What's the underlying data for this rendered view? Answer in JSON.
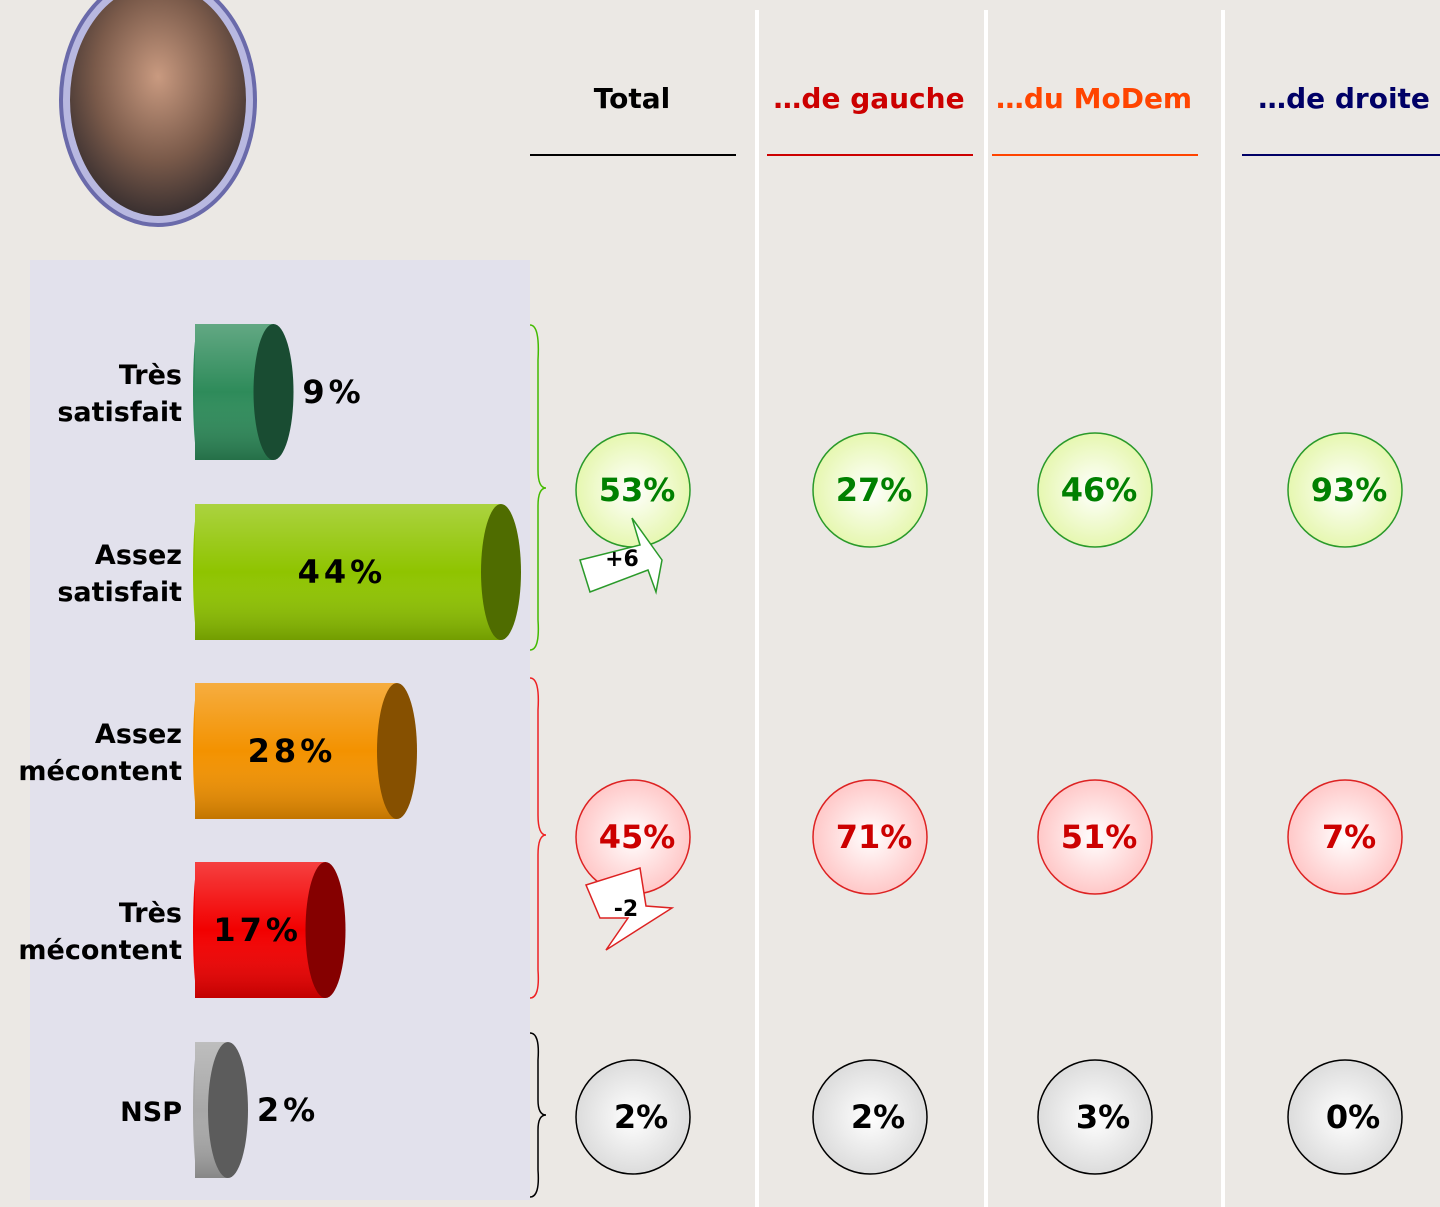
{
  "chart_data": {
    "type": "bar",
    "categories": [
      "Très satisfait",
      "Assez satisfait",
      "Assez mécontent",
      "Très mécontent",
      "NSP"
    ],
    "values": [
      9,
      44,
      28,
      17,
      2
    ],
    "value_labels": [
      "9%",
      "44%",
      "28%",
      "17%",
      "2%"
    ],
    "colors": [
      "#2e8b5a",
      "#8fc400",
      "#f39200",
      "#f20000",
      "#a8a8a8"
    ]
  },
  "table": {
    "columns": [
      "Total",
      "…de gauche",
      "…du MoDem",
      "…de droite"
    ],
    "column_colors": [
      "#000000",
      "#cc0000",
      "#ff4400",
      "#000066"
    ],
    "rows": [
      [
        "53%",
        "27%",
        "46%",
        "93%"
      ],
      [
        "45%",
        "71%",
        "51%",
        "7%"
      ],
      [
        "2%",
        "2%",
        "3%",
        "0%"
      ]
    ],
    "changes": [
      "+6",
      "-2"
    ]
  }
}
